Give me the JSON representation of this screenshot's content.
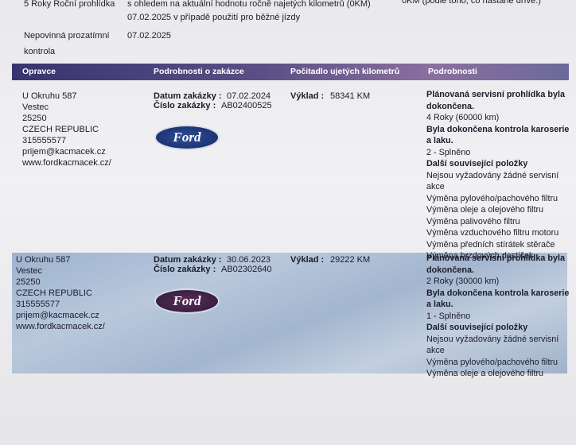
{
  "top": {
    "row1": {
      "label": "5 Roky Roční prohlídka",
      "text": "s ohledem na aktuální hodnotu ročně najetých kilometrů (0KM)",
      "right": "0KM (podle toho, co nastane dříve.)"
    },
    "row2": {
      "text": "07.02.2025 v případě použití pro běžné jízdy"
    },
    "row3": {
      "label": "Nepovinná prozatímní kontrola",
      "date": "07.02.2025"
    }
  },
  "header": [
    "Opravce",
    "Podrobnosti o zakázce",
    "Počitadlo ujetých kilometrů",
    "Podrobnosti"
  ],
  "records": [
    {
      "address": [
        "U Okruhu 587",
        "Vestec",
        "25250",
        "CZECH REPUBLIC",
        "315555577",
        "prijem@kacmacek.cz",
        "www.fordkacmacek.cz/"
      ],
      "logo": "Ford",
      "date_label": "Datum zakázky :",
      "date": "07.02.2024",
      "order_label": "Číslo zakázky :",
      "order": "AB02400525",
      "km_label": "Výklad :",
      "km": "58341 KM",
      "details": [
        {
          "text": "Plánovaná servisní prohlídka byla dokončena.",
          "bold": true
        },
        {
          "text": "4 Roky (60000 km)",
          "bold": false
        },
        {
          "text": "Byla dokončena kontrola karoserie a laku.",
          "bold": true
        },
        {
          "text": "2 - Splněno",
          "bold": false
        },
        {
          "text": "Další související položky",
          "bold": true
        },
        {
          "text": "Nejsou vyžadovány žádné servisní akce",
          "bold": false
        },
        {
          "text": "Výměna pylového/pachového filtru",
          "bold": false
        },
        {
          "text": "Výměna oleje a olejového filtru",
          "bold": false
        },
        {
          "text": "Výměna palivového filtru",
          "bold": false
        },
        {
          "text": "Výměna vzduchového filtru motoru",
          "bold": false
        },
        {
          "text": "Výměna předních stírátek stěrače",
          "bold": false
        },
        {
          "text": "Výměna brzdových destiček",
          "bold": false
        }
      ]
    },
    {
      "address": [
        "U Okruhu 587",
        "Vestec",
        "25250",
        "CZECH REPUBLIC",
        "315555577",
        "prijem@kacmacek.cz",
        "www.fordkacmacek.cz/"
      ],
      "logo": "Ford",
      "date_label": "Datum zakázky :",
      "date": "30.06.2023",
      "order_label": "Číslo zakázky :",
      "order": "AB02302640",
      "km_label": "Výklad :",
      "km": "29222 KM",
      "details": [
        {
          "text": "Plánovaná servisní prohlídka byla dokončena.",
          "bold": true
        },
        {
          "text": "2 Roky (30000 km)",
          "bold": false
        },
        {
          "text": "Byla dokončena kontrola karoserie a laku.",
          "bold": true
        },
        {
          "text": "1 - Splněno",
          "bold": false
        },
        {
          "text": "Další související položky",
          "bold": true
        },
        {
          "text": "Nejsou vyžadovány žádné servisní akce",
          "bold": false
        },
        {
          "text": "Výměna pylového/pachového filtru",
          "bold": false
        },
        {
          "text": "Výměna oleje a olejového filtru",
          "bold": false
        }
      ]
    }
  ]
}
